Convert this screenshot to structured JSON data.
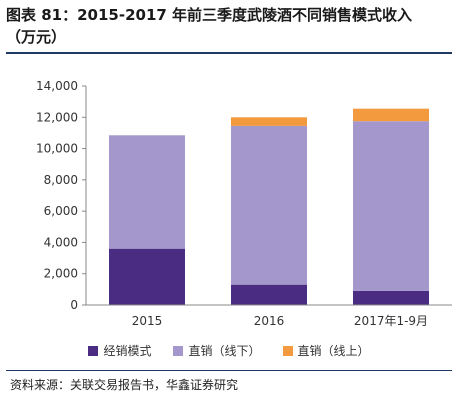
{
  "figure": {
    "title_line1": "图表 81：2015-2017 年前三季度武陵酒不同销售模式收入",
    "title_line2": "（万元）",
    "source": "资料来源：关联交易报告书，华鑫证券研究"
  },
  "chart_data": {
    "type": "bar",
    "stacked": true,
    "categories": [
      "2015",
      "2016",
      "2017年1-9月"
    ],
    "series": [
      {
        "name": "经销模式",
        "color": "#4b2c83",
        "values": [
          3600,
          1300,
          900
        ]
      },
      {
        "name": "直销（线下）",
        "color": "#a497cc",
        "values": [
          7250,
          10150,
          10850
        ]
      },
      {
        "name": "直销（线上）",
        "color": "#f39a3f",
        "values": [
          0,
          550,
          800
        ]
      }
    ],
    "ylim": [
      0,
      14000
    ],
    "yticks": [
      0,
      2000,
      4000,
      6000,
      8000,
      10000,
      12000,
      14000
    ],
    "ytick_labels": [
      "0",
      "2,000",
      "4,000",
      "6,000",
      "8,000",
      "10,000",
      "12,000",
      "14,000"
    ],
    "grid": false,
    "legend_position": "bottom"
  }
}
